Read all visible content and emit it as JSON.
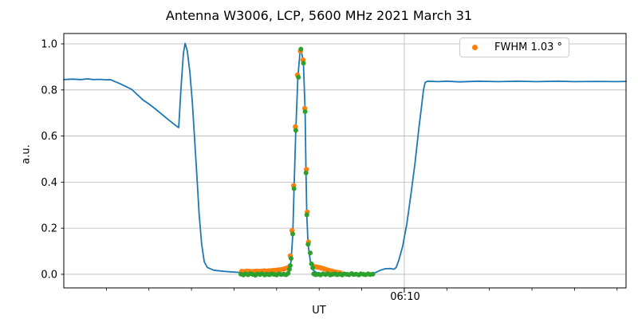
{
  "title": "Antenna W3006, LCP, 5600 MHz 2021 March 31",
  "legend": {
    "label": "FWHM 1.03 °",
    "marker_color": "#ff7f0e"
  },
  "colors": {
    "blue": "#1f77b4",
    "orange": "#ff7f0e",
    "green": "#2ca02c",
    "grid": "#b5b5b5",
    "spine": "#000000"
  },
  "chart_data": {
    "type": "line",
    "title": "Antenna W3006, LCP, 5600 MHz 2021 March 31",
    "xlabel": "UT",
    "ylabel": "a.u.",
    "grid": "horizontal-all+vertical-major",
    "legend_position": "upper right",
    "x_axis": {
      "unit": "minutes after 06:00 UT",
      "start_minutes": 2.0,
      "end_minutes": 15.21,
      "major_tick": {
        "minutes": 10,
        "label": "06:10"
      },
      "minor_ticks_minutes": [
        3,
        4,
        5,
        6,
        7,
        8,
        9,
        11,
        12,
        13,
        14,
        15
      ]
    },
    "y_axis": {
      "min": -0.059,
      "max": 1.045,
      "ticks": [
        0.0,
        0.2,
        0.4,
        0.6,
        0.8,
        1.0
      ],
      "tick_labels": [
        "0.0",
        "0.2",
        "0.4",
        "0.6",
        "0.8",
        "1.0"
      ]
    },
    "series": [
      {
        "name": "antenna-signal",
        "type": "line",
        "color": "#1f77b4",
        "width": 1.8,
        "points": [
          [
            2.0,
            0.845
          ],
          [
            2.2,
            0.847
          ],
          [
            2.4,
            0.845
          ],
          [
            2.55,
            0.848
          ],
          [
            2.7,
            0.845
          ],
          [
            2.85,
            0.846
          ],
          [
            3.0,
            0.844
          ],
          [
            3.09,
            0.845
          ],
          [
            3.31,
            0.828
          ],
          [
            3.59,
            0.803
          ],
          [
            3.87,
            0.755
          ],
          [
            3.98,
            0.742
          ],
          [
            4.15,
            0.718
          ],
          [
            4.43,
            0.675
          ],
          [
            4.66,
            0.641
          ],
          [
            4.7,
            0.637
          ],
          [
            4.75,
            0.8
          ],
          [
            4.81,
            0.96
          ],
          [
            4.85,
            1.002
          ],
          [
            4.9,
            0.97
          ],
          [
            4.96,
            0.88
          ],
          [
            5.02,
            0.745
          ],
          [
            5.07,
            0.6
          ],
          [
            5.13,
            0.42
          ],
          [
            5.18,
            0.26
          ],
          [
            5.24,
            0.13
          ],
          [
            5.3,
            0.055
          ],
          [
            5.37,
            0.03
          ],
          [
            5.52,
            0.018
          ],
          [
            5.75,
            0.013
          ],
          [
            6.12,
            0.008
          ],
          [
            6.68,
            0.004
          ],
          [
            7.2,
            0.003
          ],
          [
            7.3,
            0.01
          ],
          [
            7.34,
            0.06
          ],
          [
            7.38,
            0.17
          ],
          [
            7.41,
            0.37
          ],
          [
            7.45,
            0.625
          ],
          [
            7.5,
            0.855
          ],
          [
            7.55,
            0.965
          ],
          [
            7.57,
            0.976
          ],
          [
            7.6,
            0.95
          ],
          [
            7.63,
            0.916
          ],
          [
            7.67,
            0.706
          ],
          [
            7.69,
            0.44
          ],
          [
            7.71,
            0.258
          ],
          [
            7.74,
            0.13
          ],
          [
            7.79,
            0.06
          ],
          [
            7.85,
            0.02
          ],
          [
            7.95,
            0.005
          ],
          [
            8.2,
            0.002
          ],
          [
            8.6,
            0.001
          ],
          [
            9.0,
            0.001
          ],
          [
            9.27,
            0.003
          ],
          [
            9.44,
            0.018
          ],
          [
            9.55,
            0.024
          ],
          [
            9.68,
            0.025
          ],
          [
            9.76,
            0.022
          ],
          [
            9.81,
            0.03
          ],
          [
            9.87,
            0.06
          ],
          [
            9.96,
            0.12
          ],
          [
            10.06,
            0.22
          ],
          [
            10.15,
            0.34
          ],
          [
            10.25,
            0.48
          ],
          [
            10.34,
            0.63
          ],
          [
            10.4,
            0.72
          ],
          [
            10.45,
            0.8
          ],
          [
            10.49,
            0.833
          ],
          [
            10.55,
            0.838
          ],
          [
            10.8,
            0.836
          ],
          [
            11.0,
            0.838
          ],
          [
            11.3,
            0.835
          ],
          [
            11.74,
            0.838
          ],
          [
            12.2,
            0.836
          ],
          [
            12.68,
            0.838
          ],
          [
            13.1,
            0.836
          ],
          [
            13.62,
            0.838
          ],
          [
            14.0,
            0.836
          ],
          [
            14.56,
            0.837
          ],
          [
            15.0,
            0.836
          ],
          [
            15.21,
            0.837
          ]
        ]
      },
      {
        "name": "gaussian-fit-samples",
        "type": "scatter",
        "color": "#ff7f0e",
        "radius": 3.2,
        "points": [
          [
            6.18,
            0.013
          ],
          [
            6.24,
            0.012
          ],
          [
            6.3,
            0.014
          ],
          [
            6.36,
            0.013
          ],
          [
            6.42,
            0.012
          ],
          [
            6.48,
            0.013
          ],
          [
            6.53,
            0.014
          ],
          [
            6.59,
            0.013
          ],
          [
            6.65,
            0.014
          ],
          [
            6.71,
            0.015
          ],
          [
            6.77,
            0.014
          ],
          [
            6.82,
            0.015
          ],
          [
            6.88,
            0.016
          ],
          [
            6.94,
            0.017
          ],
          [
            7.0,
            0.018
          ],
          [
            7.05,
            0.019
          ],
          [
            7.11,
            0.021
          ],
          [
            7.17,
            0.023
          ],
          [
            7.22,
            0.026
          ],
          [
            7.27,
            0.029
          ],
          [
            7.32,
            0.08
          ],
          [
            7.36,
            0.19
          ],
          [
            7.4,
            0.385
          ],
          [
            7.44,
            0.64
          ],
          [
            7.49,
            0.865
          ],
          [
            7.56,
            0.968
          ],
          [
            7.62,
            0.93
          ],
          [
            7.66,
            0.72
          ],
          [
            7.7,
            0.455
          ],
          [
            7.72,
            0.27
          ],
          [
            7.75,
            0.14
          ],
          [
            7.88,
            0.034
          ],
          [
            7.94,
            0.032
          ],
          [
            8.0,
            0.03
          ],
          [
            8.05,
            0.027
          ],
          [
            8.11,
            0.024
          ],
          [
            8.16,
            0.021
          ],
          [
            8.22,
            0.018
          ],
          [
            8.28,
            0.015
          ],
          [
            8.33,
            0.012
          ],
          [
            8.39,
            0.01
          ],
          [
            8.44,
            0.008
          ],
          [
            8.5,
            0.006
          ]
        ]
      },
      {
        "name": "measured-data-samples",
        "type": "scatter",
        "color": "#2ca02c",
        "radius": 3.0,
        "points": [
          [
            6.16,
            0.001
          ],
          [
            6.22,
            -0.003
          ],
          [
            6.27,
            0.002
          ],
          [
            6.33,
            -0.002
          ],
          [
            6.38,
            0.003
          ],
          [
            6.44,
            0.0
          ],
          [
            6.5,
            -0.004
          ],
          [
            6.55,
            0.002
          ],
          [
            6.61,
            -0.001
          ],
          [
            6.66,
            0.003
          ],
          [
            6.72,
            -0.003
          ],
          [
            6.78,
            0.001
          ],
          [
            6.83,
            -0.002
          ],
          [
            6.89,
            0.002
          ],
          [
            6.94,
            0.0
          ],
          [
            7.0,
            -0.003
          ],
          [
            7.06,
            0.002
          ],
          [
            7.11,
            -0.001
          ],
          [
            7.17,
            0.001
          ],
          [
            7.22,
            -0.002
          ],
          [
            7.27,
            0.004
          ],
          [
            7.3,
            0.022
          ],
          [
            7.32,
            0.038
          ],
          [
            7.34,
            0.069
          ],
          [
            7.38,
            0.175
          ],
          [
            7.41,
            0.372
          ],
          [
            7.45,
            0.625
          ],
          [
            7.51,
            0.855
          ],
          [
            7.57,
            0.977
          ],
          [
            7.63,
            0.916
          ],
          [
            7.67,
            0.706
          ],
          [
            7.69,
            0.44
          ],
          [
            7.71,
            0.258
          ],
          [
            7.74,
            0.13
          ],
          [
            7.79,
            0.093
          ],
          [
            7.82,
            0.045
          ],
          [
            7.85,
            0.028
          ],
          [
            7.87,
            0.002
          ],
          [
            7.92,
            -0.002
          ],
          [
            7.98,
            0.001
          ],
          [
            8.03,
            -0.003
          ],
          [
            8.09,
            0.002
          ],
          [
            8.15,
            -0.001
          ],
          [
            8.2,
            0.003
          ],
          [
            8.26,
            -0.003
          ],
          [
            8.31,
            0.0
          ],
          [
            8.37,
            0.002
          ],
          [
            8.42,
            -0.002
          ],
          [
            8.48,
            0.001
          ],
          [
            8.54,
            -0.003
          ],
          [
            8.59,
            0.002
          ],
          [
            8.65,
            0.0
          ],
          [
            8.7,
            -0.002
          ],
          [
            8.76,
            0.003
          ],
          [
            8.81,
            -0.001
          ],
          [
            8.87,
            0.001
          ],
          [
            8.93,
            -0.003
          ],
          [
            8.98,
            0.002
          ],
          [
            9.04,
            0.0
          ],
          [
            9.09,
            -0.002
          ],
          [
            9.15,
            0.002
          ],
          [
            9.2,
            -0.001
          ],
          [
            9.26,
            0.001
          ]
        ]
      }
    ]
  }
}
